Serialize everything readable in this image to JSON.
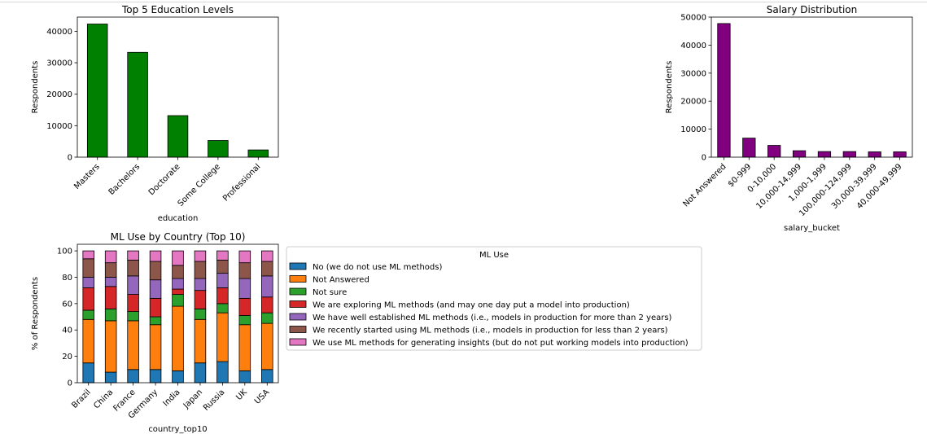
{
  "chart_data": [
    {
      "type": "bar",
      "title": "Top 5 Education Levels",
      "xlabel": "education",
      "ylabel": "Respondents",
      "categories": [
        "Masters",
        "Bachelors",
        "Doctorate",
        "Some College",
        "Professional"
      ],
      "values": [
        42300,
        33300,
        13200,
        5300,
        2300
      ],
      "ylim": [
        0,
        44500
      ],
      "yticks": [
        0,
        10000,
        20000,
        30000,
        40000
      ],
      "ytick_labels": [
        "0",
        "10000",
        "20000",
        "30000",
        "40000"
      ],
      "color": "#008000",
      "grid": false
    },
    {
      "type": "bar",
      "title": "Salary Distribution",
      "xlabel": "salary_bucket",
      "ylabel": "Respondents",
      "categories": [
        "Not Answered",
        "$0-999",
        "0-10,000",
        "10,000-14,999",
        "1,000-1,999",
        "100,000-124,999",
        "30,000-39,999",
        "40,000-49,999"
      ],
      "values": [
        47700,
        6800,
        4200,
        2300,
        2000,
        2000,
        1900,
        1900
      ],
      "ylim": [
        0,
        50000
      ],
      "yticks": [
        0,
        10000,
        20000,
        30000,
        40000,
        50000
      ],
      "ytick_labels": [
        "0",
        "10000",
        "20000",
        "30000",
        "40000",
        "50000"
      ],
      "color": "#800080",
      "grid": false
    },
    {
      "type": "bar",
      "stacked": true,
      "title": "ML Use by Country (Top 10)",
      "xlabel": "country_top10",
      "ylabel": "% of Respondents",
      "categories": [
        "Brazil",
        "China",
        "France",
        "Germany",
        "India",
        "Japan",
        "Russia",
        "UK",
        "USA"
      ],
      "ylim": [
        0,
        105
      ],
      "yticks": [
        0,
        20,
        40,
        60,
        80,
        100
      ],
      "ytick_labels": [
        "0",
        "20",
        "40",
        "60",
        "80",
        "100"
      ],
      "legend_title": "ML Use",
      "legend_position": "right",
      "grid": false,
      "series": [
        {
          "name": "No (we do not use ML methods)",
          "color": "#1f77b4",
          "values": [
            15,
            8,
            10,
            10,
            9,
            15,
            16,
            9,
            10
          ]
        },
        {
          "name": "Not Answered",
          "color": "#ff7f0e",
          "values": [
            33,
            39,
            37,
            34,
            49,
            33,
            37,
            35,
            35
          ]
        },
        {
          "name": "Not sure",
          "color": "#2ca02c",
          "values": [
            7,
            9,
            7,
            6,
            9,
            8,
            7,
            7,
            8
          ]
        },
        {
          "name": "We are exploring ML methods (and may one day put a model into production)",
          "color": "#d62728",
          "values": [
            17,
            17,
            13,
            14,
            4,
            14,
            12,
            13,
            12
          ]
        },
        {
          "name": "We have well established ML methods (i.e., models in production for more than 2 years)",
          "color": "#9467bd",
          "values": [
            8,
            7,
            14,
            14,
            8,
            9,
            11,
            15,
            16
          ]
        },
        {
          "name": "We recently started using ML methods (i.e., models in production for less than 2 years)",
          "color": "#8c564b",
          "values": [
            14,
            11,
            12,
            14,
            10,
            13,
            10,
            12,
            11
          ]
        },
        {
          "name": "We use ML methods for generating insights (but do not put working models into production)",
          "color": "#e377c2",
          "values": [
            6,
            9,
            7,
            8,
            11,
            8,
            7,
            9,
            8
          ]
        }
      ]
    }
  ]
}
